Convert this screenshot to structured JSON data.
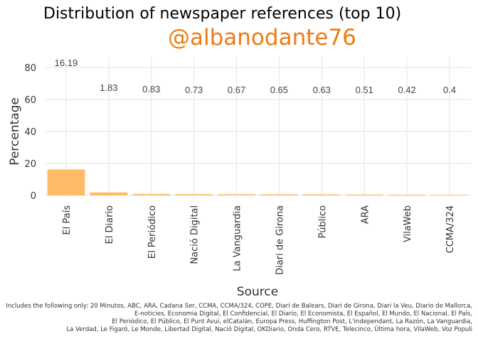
{
  "chart_data": {
    "type": "bar",
    "title": "Distribution of newspaper references (top 10)",
    "subtitle": "@albanodante76",
    "xlabel": "Source",
    "ylabel": "Percentage",
    "ylim": [
      0,
      85
    ],
    "yticks": [
      0,
      20,
      40,
      60,
      80
    ],
    "grid": true,
    "bar_color": "#ffbb66",
    "subtitle_color": "#f07a12",
    "categories": [
      "El País",
      "El Diario",
      "El Periódico",
      "Nació Digital",
      "La Vanguardia",
      "Diari de Girona",
      "Público",
      "ARA",
      "VilaWeb",
      "CCMA/324"
    ],
    "values": [
      16.19,
      1.83,
      0.83,
      0.73,
      0.67,
      0.65,
      0.63,
      0.51,
      0.42,
      0.4
    ],
    "value_labels": [
      "16.19",
      "1.83",
      "0.83",
      "0.73",
      "0.67",
      "0.65",
      "0.63",
      "0.51",
      "0.42",
      "0.4"
    ],
    "caption": [
      "Includes the following only: 20 Minutos, ABC, ARA, Cadana Ser, CCMA, CCMA/324, COPE, Diari de Balears, Diari de Girona, Diari la Veu, Diario de Mallorca,",
      "E-noticies, Economia Digital, El Confidencial, El Diario, El Economista, El Español, El Mundo, El Nacional, El País,",
      "El Periódico, El Público, El Punt Avui, elCatalán, Europa Press, Huffington Post, L'independant, La Razón, La Vanguardia,",
      "La Verdad, Le Figaró, Le Monde, Libertad Digital, Nació Digital, OKDiario, Onda Cero, RTVE, Telecinco, Última hora, VilaWeb, Voz Populi"
    ]
  }
}
